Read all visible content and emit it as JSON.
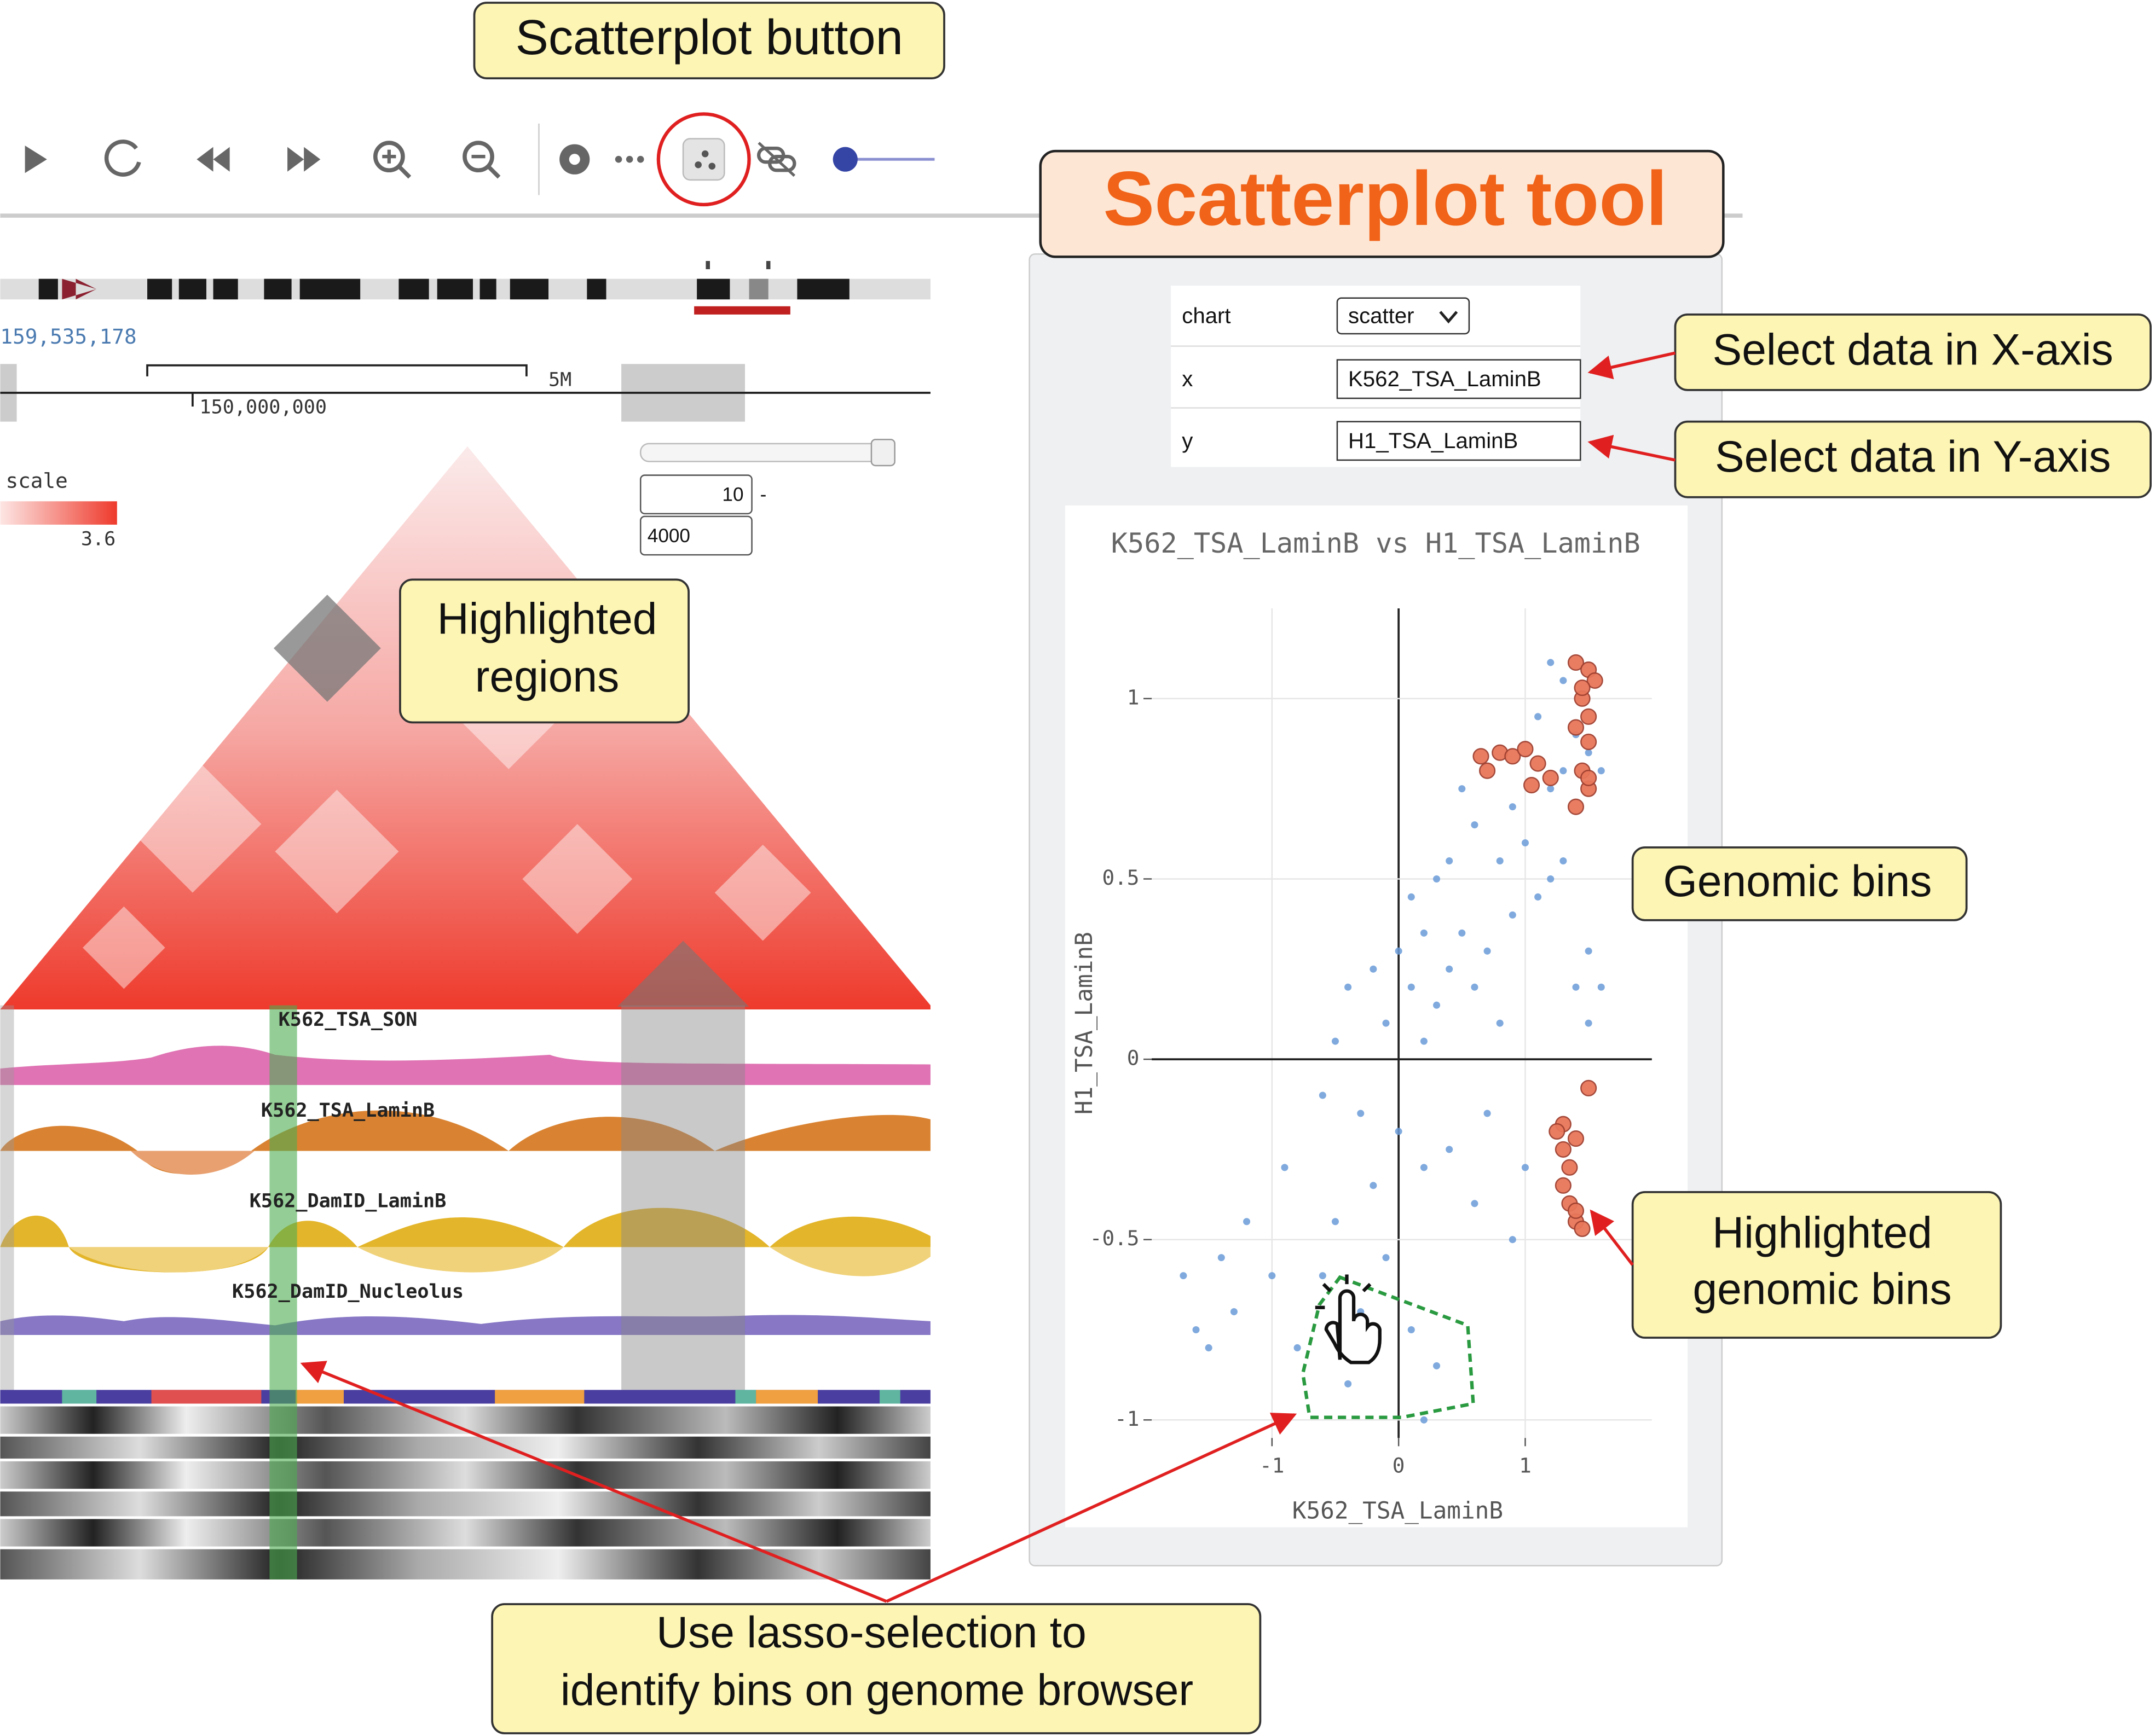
{
  "annotations": {
    "scatterplot_button": "Scatterplot button",
    "scatterplot_tool": "Scatterplot tool",
    "select_x": "Select data in X-axis",
    "select_y": "Select data in Y-axis",
    "highlighted_regions": [
      "Highlighted",
      "regions"
    ],
    "genomic_bins": "Genomic bins",
    "highlighted_bins": [
      "Highlighted",
      "genomic bins"
    ],
    "lasso": [
      "Use lasso-selection to",
      "identify bins on genome browser"
    ]
  },
  "browser": {
    "coordinate": "159,535,178",
    "scale_bar": "5M",
    "position_tick": "150,000,000",
    "scale_label": "scale",
    "scale_max": "3.6",
    "range_min": "10",
    "range_max": "4000",
    "tracks": [
      "K562_TSA_SON",
      "K562_TSA_LaminB",
      "K562_DamID_LaminB",
      "K562_DamID_Nucleolus"
    ]
  },
  "settings": {
    "rows": [
      [
        "chart",
        "scatter"
      ],
      [
        "x",
        "K562_TSA_LaminB"
      ],
      [
        "y",
        "H1_TSA_LaminB"
      ]
    ]
  },
  "chart_data": {
    "type": "scatter",
    "title": "K562_TSA_LaminB vs H1_TSA_LaminB",
    "x_label": "K562_TSA_LaminB",
    "y_label": "H1_TSA_LaminB",
    "xlim": [
      -1.95,
      2.0
    ],
    "ylim": [
      -1.05,
      1.25
    ],
    "xticks": [
      -1,
      0,
      1
    ],
    "yticks": [
      -1,
      -0.5,
      0,
      0.5,
      1
    ],
    "grid": true,
    "series": [
      {
        "color": "#6a9bd8",
        "x": [
          1.2,
          1.3,
          1.1,
          1.4,
          1.5,
          1.6,
          1.3,
          1.2,
          0.9,
          1.0,
          0.5,
          0.6,
          0.4,
          0.8,
          1.2,
          1.1,
          0.3,
          0.1,
          0.2,
          0.5,
          0.7,
          0.9,
          1.3,
          0.4,
          0.6,
          0.1,
          0.0,
          -0.2,
          -0.4,
          -0.1,
          0.3,
          1.5,
          1.4,
          1.5,
          1.6,
          -0.5,
          0.2,
          0.8,
          -0.6,
          -0.3,
          0.0,
          0.2,
          -0.2,
          0.4,
          0.6,
          -0.9,
          -0.5,
          -1.2,
          -1.4,
          -1.7,
          -1.6,
          -1.3,
          -1.0,
          -0.6,
          -0.3,
          0.3,
          0.1,
          -0.8,
          -1.5,
          0.9,
          0.7,
          1.0,
          -0.1,
          -0.4,
          0.2
        ],
        "values": [
          1.1,
          1.05,
          0.95,
          0.9,
          0.85,
          0.8,
          0.8,
          0.75,
          0.7,
          0.6,
          0.75,
          0.65,
          0.55,
          0.55,
          0.5,
          0.45,
          0.5,
          0.45,
          0.35,
          0.35,
          0.3,
          0.4,
          0.55,
          0.25,
          0.2,
          0.2,
          0.3,
          0.25,
          0.2,
          0.1,
          0.15,
          0.3,
          0.2,
          0.1,
          0.2,
          0.05,
          0.05,
          0.1,
          -0.1,
          -0.15,
          -0.2,
          -0.3,
          -0.35,
          -0.25,
          -0.4,
          -0.3,
          -0.45,
          -0.45,
          -0.55,
          -0.6,
          -0.75,
          -0.7,
          -0.6,
          -0.6,
          -0.7,
          -0.85,
          -0.75,
          -0.8,
          -0.8,
          -0.5,
          -0.15,
          -0.3,
          -0.55,
          -0.9,
          -1.0
        ]
      },
      {
        "color": "#e8775a",
        "x": [
          1.4,
          1.5,
          1.55,
          1.45,
          1.5,
          1.4,
          1.5,
          1.45,
          0.65,
          0.8,
          0.9,
          1.0,
          1.1,
          1.2,
          0.7,
          1.05,
          1.45,
          1.5,
          1.4,
          1.5,
          1.5,
          1.3,
          1.25,
          1.3,
          1.35,
          1.4,
          1.3,
          1.35,
          1.4,
          1.45,
          1.4
        ],
        "values": [
          1.1,
          1.08,
          1.05,
          1.0,
          0.95,
          0.92,
          0.88,
          1.03,
          0.84,
          0.85,
          0.84,
          0.86,
          0.82,
          0.78,
          0.8,
          0.76,
          0.8,
          0.75,
          0.7,
          0.78,
          -0.08,
          -0.18,
          -0.2,
          -0.25,
          -0.3,
          -0.22,
          -0.35,
          -0.4,
          -0.45,
          -0.47,
          -0.42
        ]
      }
    ]
  }
}
